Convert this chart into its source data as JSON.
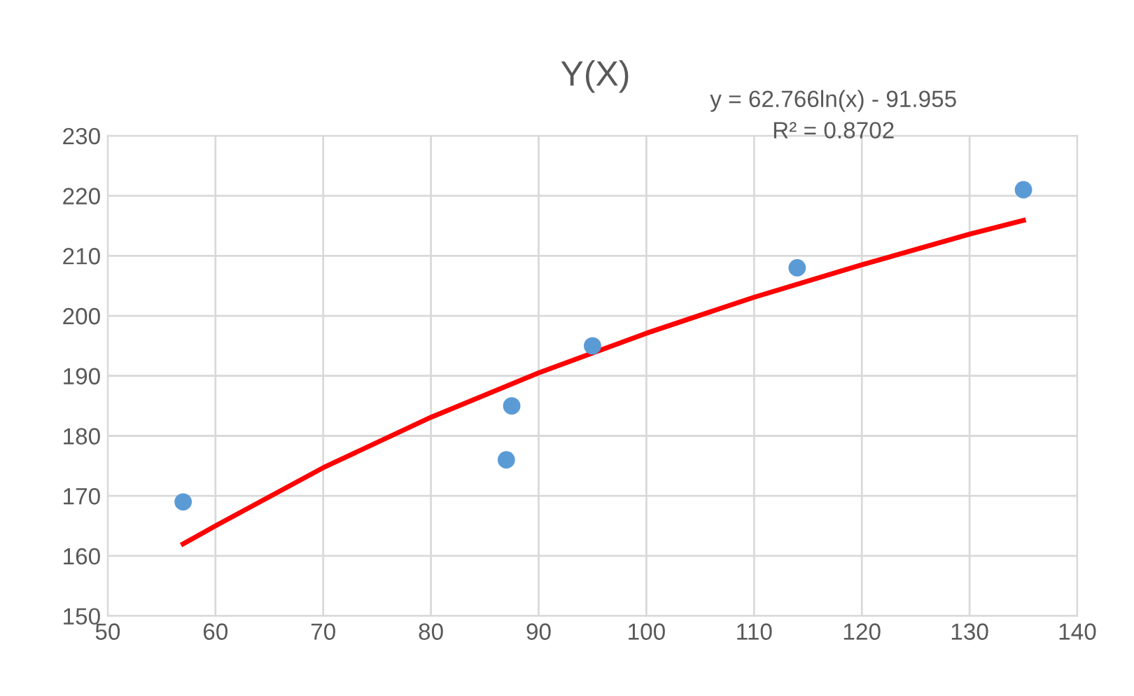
{
  "chart_data": {
    "type": "scatter",
    "title": "Y(X)",
    "annotations": [
      "y = 62.766ln(x) - 91.955",
      "R² = 0.8702"
    ],
    "series": [
      {
        "marker": "circle",
        "color": "#5b9bd5",
        "x": [
          57,
          87,
          87.5,
          95,
          114,
          135
        ],
        "values": [
          169,
          176,
          185,
          195,
          208,
          221
        ]
      },
      {
        "type": "line",
        "color": "#ff0000",
        "x": [
          57,
          60,
          70,
          80,
          90,
          100,
          110,
          120,
          130,
          135
        ],
        "values": [
          162,
          165,
          174.7,
          183.1,
          190.5,
          197.1,
          203.1,
          208.5,
          213.6,
          215.9
        ]
      }
    ],
    "xlim": [
      50,
      140
    ],
    "xticks": [
      50,
      60,
      70,
      80,
      90,
      100,
      110,
      120,
      130,
      140
    ],
    "ylim": [
      150,
      230
    ],
    "yticks": [
      150,
      160,
      170,
      180,
      190,
      200,
      210,
      220,
      230
    ],
    "grid": true,
    "legend": false
  }
}
